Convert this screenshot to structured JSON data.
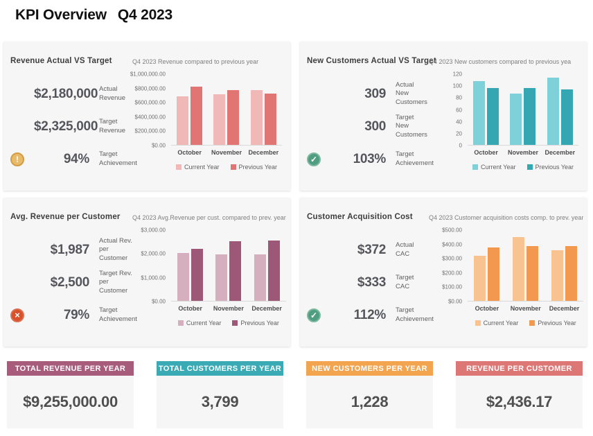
{
  "page": {
    "title_main": "KPI Overview",
    "title_period": "Q4 2023"
  },
  "icons": {
    "warning": {
      "glyph": "!"
    },
    "success": {
      "glyph": "✓"
    },
    "error": {
      "glyph": "×"
    }
  },
  "panels": [
    {
      "title": "Revenue Actual VS Target",
      "kpis": [
        {
          "value": "$2,180,000",
          "label": "Actual\nRevenue"
        },
        {
          "value": "$2,325,000",
          "label": "Target\nRevenue"
        }
      ],
      "status": {
        "value": "94%",
        "label": "Target\nAchievement",
        "icon": "warning"
      }
    },
    {
      "title": "New Customers Actual VS Target",
      "kpis": [
        {
          "value": "309",
          "label": "Actual\nNew\nCustomers"
        },
        {
          "value": "300",
          "label": "Target\nNew\nCustomers"
        }
      ],
      "status": {
        "value": "103%",
        "label": "Target\nAchievement",
        "icon": "success"
      }
    },
    {
      "title": "Avg. Revenue per Customer",
      "kpis": [
        {
          "value": "$1,987",
          "label": "Actual Rev.\nper Customer"
        },
        {
          "value": "$2,500",
          "label": "Target Rev.\nper Customer"
        }
      ],
      "status": {
        "value": "79%",
        "label": "Target\nAchievement",
        "icon": "error"
      }
    },
    {
      "title": "Customer Acquisition Cost",
      "kpis": [
        {
          "value": "$372",
          "label": "Actual\nCAC"
        },
        {
          "value": "$333",
          "label": "Target\nCAC"
        }
      ],
      "status": {
        "value": "112%",
        "label": "Target\nAchievement",
        "icon": "success"
      }
    }
  ],
  "chart_data": [
    {
      "type": "bar",
      "title": "Q4 2023 Revenue compared to previous year",
      "categories": [
        "October",
        "November",
        "December"
      ],
      "series": [
        {
          "name": "Current Year",
          "color": "#f0b8b7",
          "values": [
            690000,
            715000,
            775000
          ]
        },
        {
          "name": "Previous Year",
          "color": "#e07573",
          "values": [
            825000,
            775000,
            730000
          ]
        }
      ],
      "ymax": 1000000,
      "ylim": [
        0,
        1000000
      ],
      "yticks": [
        "$1,000,000.00",
        "$800,000.00",
        "$600,000.00",
        "$400,000.00",
        "$200,000.00",
        "$0.00"
      ],
      "grid": false,
      "legend_position": "bottom"
    },
    {
      "type": "bar",
      "title": "Q4 2023 New customers compared to previous yea",
      "categories": [
        "October",
        "November",
        "December"
      ],
      "series": [
        {
          "name": "Current Year",
          "color": "#7ed1d8",
          "values": [
            108,
            87,
            114
          ]
        },
        {
          "name": "Previous Year",
          "color": "#35a7b2",
          "values": [
            97,
            96,
            94
          ]
        }
      ],
      "ymax": 120,
      "ylim": [
        0,
        120
      ],
      "yticks": [
        "120",
        "100",
        "80",
        "60",
        "40",
        "20",
        "0"
      ],
      "grid": false,
      "legend_position": "bottom"
    },
    {
      "type": "bar",
      "title": "Q4 2023 Avg.Revenue per cust. compared to prev. year",
      "categories": [
        "October",
        "November",
        "December"
      ],
      "series": [
        {
          "name": "Current Year",
          "color": "#d5afbe",
          "values": [
            2030,
            1960,
            1970
          ]
        },
        {
          "name": "Previous Year",
          "color": "#9e5877",
          "values": [
            2200,
            2530,
            2560
          ]
        }
      ],
      "ymax": 3000,
      "ylim": [
        0,
        3000
      ],
      "yticks": [
        "$3,000.00",
        "$2,000.00",
        "$1,000.00",
        "$0.00"
      ],
      "grid": false,
      "legend_position": "bottom"
    },
    {
      "type": "bar",
      "title": "Q4 2023 Customer acquisition costs comp. to prev. year",
      "categories": [
        "October",
        "November",
        "December"
      ],
      "series": [
        {
          "name": "Current Year",
          "color": "#f8c291",
          "values": [
            320,
            450,
            358
          ]
        },
        {
          "name": "Previous Year",
          "color": "#f3984f",
          "values": [
            378,
            385,
            388
          ]
        }
      ],
      "ymax": 500,
      "ylim": [
        0,
        500
      ],
      "yticks": [
        "$500.00",
        "$400.00",
        "$300.00",
        "$200.00",
        "$100.00",
        "$0.00"
      ],
      "grid": false,
      "legend_position": "bottom"
    }
  ],
  "summary_cards": [
    {
      "title": "TOTAL REVENUE PER YEAR",
      "value": "$9,255,000.00",
      "color": "#a85c7c"
    },
    {
      "title": "TOTAL CUSTOMERS PER YEAR",
      "value": "3,799",
      "color": "#3aabb5"
    },
    {
      "title": "NEW CUSTOMERS PER YEAR",
      "value": "1,228",
      "color": "#f2a44f"
    },
    {
      "title": "REVENUE PER CUSTOMER",
      "value": "$2,436.17",
      "color": "#dd7775"
    }
  ]
}
